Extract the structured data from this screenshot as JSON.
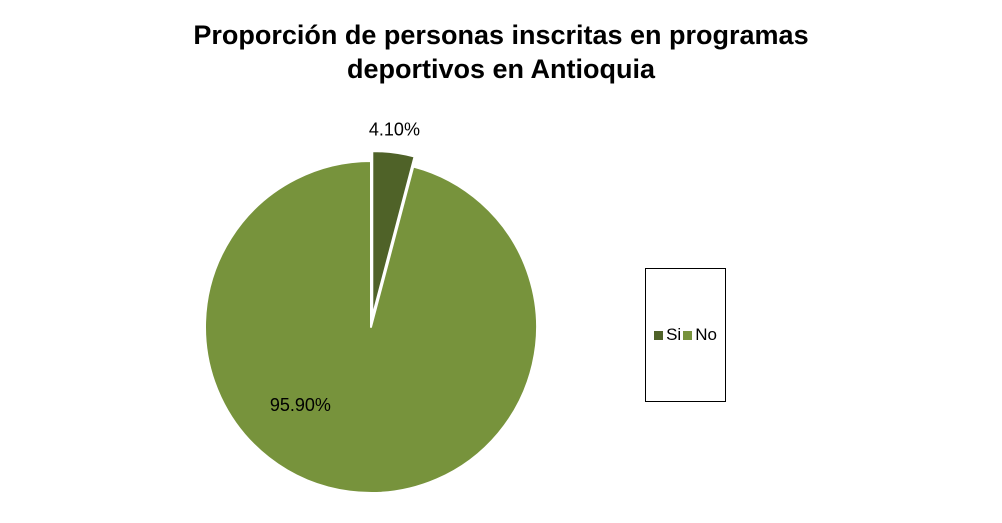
{
  "chart_data": {
    "type": "pie",
    "title_lines": [
      "Proporción de personas inscritas en programas",
      "deportivos en Antioquia"
    ],
    "slices": [
      {
        "label": "Si",
        "value": 4.1,
        "value_label": "4.10%",
        "color": "#4f6228",
        "exploded": true
      },
      {
        "label": "No",
        "value": 95.9,
        "value_label": "95.90%",
        "color": "#77933c",
        "exploded": false
      }
    ],
    "legend_position": "right"
  }
}
